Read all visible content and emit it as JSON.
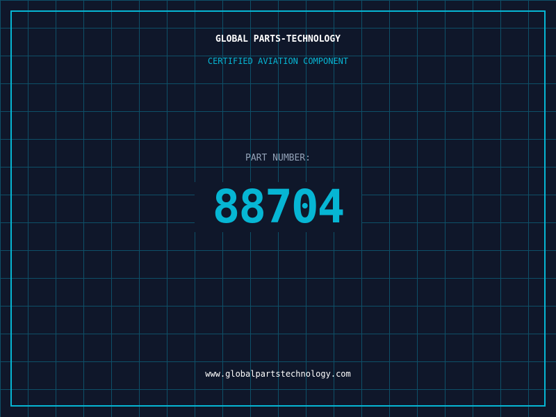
{
  "company": "GLOBAL PARTS-TECHNOLOGY",
  "subtitle": "CERTIFIED AVIATION COMPONENT",
  "part_label": "PART NUMBER:",
  "part_number": "88704",
  "website": "www.globalpartstechnology.com",
  "colors": {
    "accent": "#06b6d4",
    "background": "#0f172a",
    "grid": "#0e5068"
  }
}
